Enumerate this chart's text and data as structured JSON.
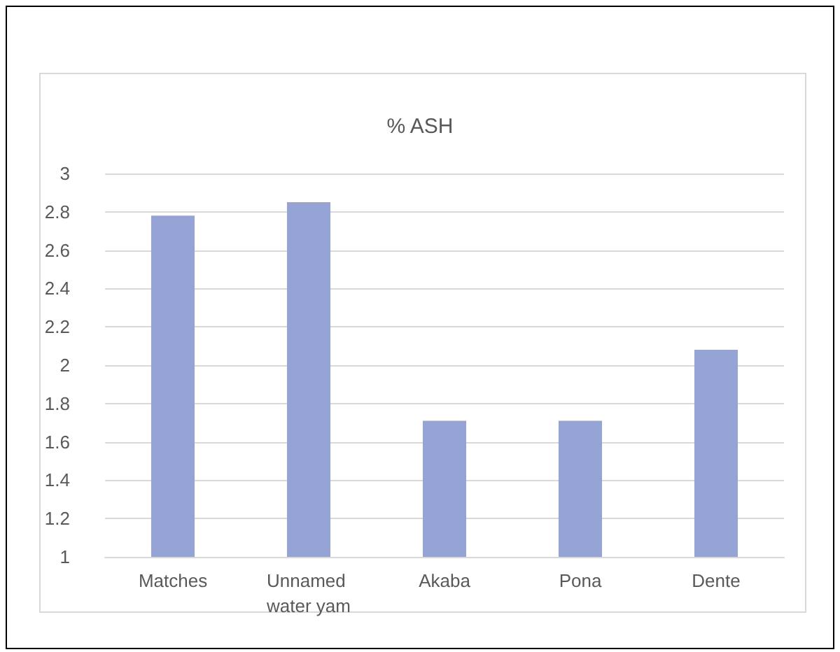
{
  "chart_data": {
    "type": "bar",
    "title": "% ASH",
    "categories": [
      "Matches",
      "Unnamed water yam",
      "Akaba",
      "Pona",
      "Dente"
    ],
    "values": [
      2.78,
      2.85,
      1.71,
      1.71,
      2.08
    ],
    "color": "#95a3d5",
    "ylim": [
      1,
      3
    ],
    "yticks": [
      1,
      1.2,
      1.4,
      1.6,
      1.8,
      2,
      2.2,
      2.4,
      2.6,
      2.8,
      3
    ],
    "grid": "y"
  }
}
